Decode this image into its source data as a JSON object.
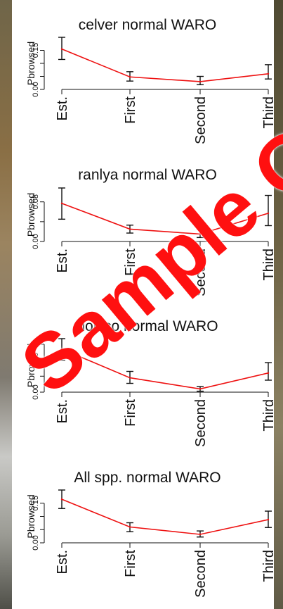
{
  "colors": {
    "line": "#ee1111",
    "axis": "#111111",
    "watermark": "#ff1010"
  },
  "watermark": {
    "text": "Sample Office"
  },
  "chart_data": [
    {
      "type": "line",
      "title": "celver  normal WARO",
      "ylabel": "Pbrowsed",
      "categories": [
        "Est.",
        "First",
        "Second",
        "Third"
      ],
      "values": [
        0.155,
        0.048,
        0.03,
        0.06
      ],
      "error_low": [
        0.115,
        0.032,
        0.018,
        0.04
      ],
      "error_high": [
        0.2,
        0.068,
        0.05,
        0.095
      ],
      "yticks": [
        0.0,
        0.05,
        0.1,
        0.15
      ],
      "ytick_labels": [
        "0.00",
        "",
        "",
        "0.15"
      ],
      "ylim": [
        0,
        0.2
      ],
      "grid": false
    },
    {
      "type": "line",
      "title": "ranlya  normal WARO",
      "ylabel": "Pbrowsed",
      "categories": [
        "Est.",
        "First",
        "Second",
        "Third"
      ],
      "values": [
        0.077,
        0.025,
        0.015,
        0.057
      ],
      "error_low": [
        0.045,
        0.017,
        0.008,
        0.032
      ],
      "error_high": [
        0.108,
        0.033,
        0.025,
        0.093
      ],
      "yticks": [
        0.0,
        0.04,
        0.08
      ],
      "ytick_labels": [
        "0.00",
        "",
        "0.08"
      ],
      "ylim": [
        0,
        0.108
      ],
      "grid": false
    },
    {
      "type": "line",
      "title": "dolsco  normal WARO",
      "ylabel": "Pbrowsed",
      "categories": [
        "Est.",
        "First",
        "Second",
        "Third"
      ],
      "values": [
        0.27,
        0.09,
        0.02,
        0.12
      ],
      "error_low": [
        0.2,
        0.055,
        0.006,
        0.075
      ],
      "error_high": [
        0.335,
        0.13,
        0.035,
        0.185
      ],
      "yticks": [
        0.0,
        0.1,
        0.2,
        0.3
      ],
      "ytick_labels": [
        "0.00",
        "",
        "0.20",
        ""
      ],
      "ylim": [
        0,
        0.335
      ],
      "grid": false
    },
    {
      "type": "line",
      "title": "All spp.  normal WARO",
      "ylabel": "Pbrowsed",
      "categories": [
        "Est.",
        "First",
        "Second",
        "Third"
      ],
      "values": [
        0.165,
        0.06,
        0.032,
        0.088
      ],
      "error_low": [
        0.13,
        0.042,
        0.022,
        0.058
      ],
      "error_high": [
        0.2,
        0.076,
        0.045,
        0.12
      ],
      "yticks": [
        0.0,
        0.05,
        0.1,
        0.15
      ],
      "ytick_labels": [
        "0.00",
        "",
        "",
        "0.15"
      ],
      "ylim": [
        0,
        0.2
      ],
      "grid": false
    }
  ]
}
